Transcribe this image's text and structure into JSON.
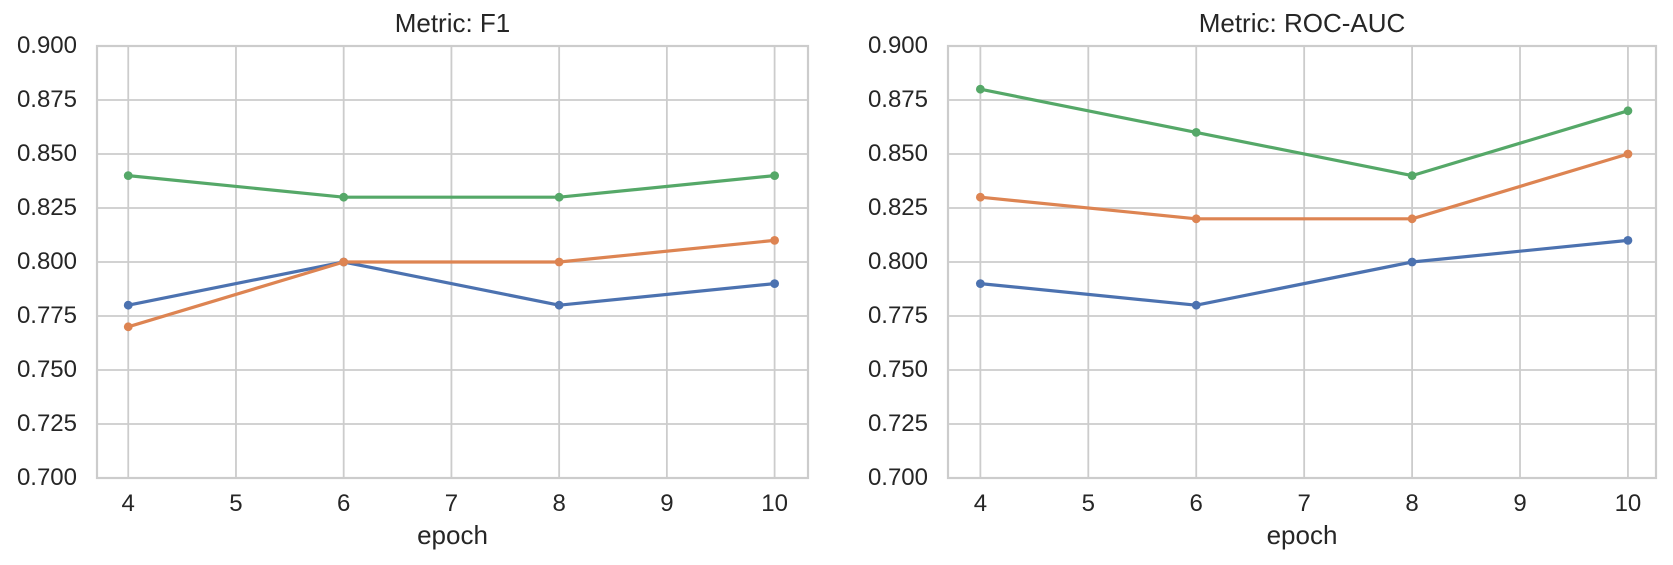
{
  "figure": {
    "background": "#ffffff",
    "text_color": "#262626",
    "grid_color": "#cccccc",
    "spine_color": "#cccccc"
  },
  "chart_data": [
    {
      "type": "line",
      "title": "Metric: F1",
      "xlabel": "epoch",
      "ylabel": "",
      "x": [
        4,
        6,
        8,
        10
      ],
      "xticks": [
        4,
        5,
        6,
        7,
        8,
        9,
        10
      ],
      "ytick_labels": [
        "0.700",
        "0.725",
        "0.750",
        "0.775",
        "0.800",
        "0.825",
        "0.850",
        "0.875",
        "0.900"
      ],
      "xlim": [
        3.71,
        10.31
      ],
      "ylim": [
        0.7,
        0.9
      ],
      "grid": true,
      "legend": null,
      "marker": "circle",
      "series": [
        {
          "name": "series-blue",
          "color": "#4c72b0",
          "values": [
            0.78,
            0.8,
            0.78,
            0.79
          ]
        },
        {
          "name": "series-orange",
          "color": "#dd8452",
          "values": [
            0.77,
            0.8,
            0.8,
            0.81
          ]
        },
        {
          "name": "series-green",
          "color": "#55a868",
          "values": [
            0.84,
            0.83,
            0.83,
            0.84
          ]
        }
      ]
    },
    {
      "type": "line",
      "title": "Metric: ROC-AUC",
      "xlabel": "epoch",
      "ylabel": "",
      "x": [
        4,
        6,
        8,
        10
      ],
      "xticks": [
        4,
        5,
        6,
        7,
        8,
        9,
        10
      ],
      "ytick_labels": [
        "0.700",
        "0.725",
        "0.750",
        "0.775",
        "0.800",
        "0.825",
        "0.850",
        "0.875",
        "0.900"
      ],
      "xlim": [
        3.7,
        10.26
      ],
      "ylim": [
        0.7,
        0.9
      ],
      "grid": true,
      "legend": null,
      "marker": "circle",
      "series": [
        {
          "name": "series-blue",
          "color": "#4c72b0",
          "values": [
            0.79,
            0.78,
            0.8,
            0.81
          ]
        },
        {
          "name": "series-orange",
          "color": "#dd8452",
          "values": [
            0.83,
            0.82,
            0.82,
            0.85
          ]
        },
        {
          "name": "series-green",
          "color": "#55a868",
          "values": [
            0.88,
            0.86,
            0.84,
            0.87
          ]
        }
      ]
    }
  ]
}
